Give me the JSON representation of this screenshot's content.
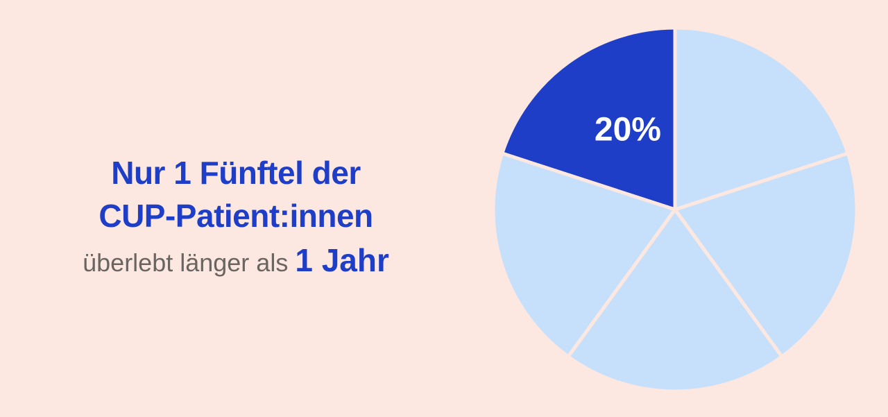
{
  "headline": {
    "line1": "Nur 1 Fünftel der",
    "line2": "CUP-Patient:innen",
    "line3_text": "überlebt länger als ",
    "line3_emph": "1 Jahr"
  },
  "colors": {
    "background": "#fce8e0",
    "highlight": "#1f3ec7",
    "slice": "#c6e0fb",
    "gray_text": "#6b6562"
  },
  "chart_data": {
    "type": "pie",
    "values": [
      20,
      20,
      20,
      20,
      20
    ],
    "highlight_index": 0,
    "labels": [
      "20%",
      "",
      "",
      "",
      ""
    ]
  }
}
